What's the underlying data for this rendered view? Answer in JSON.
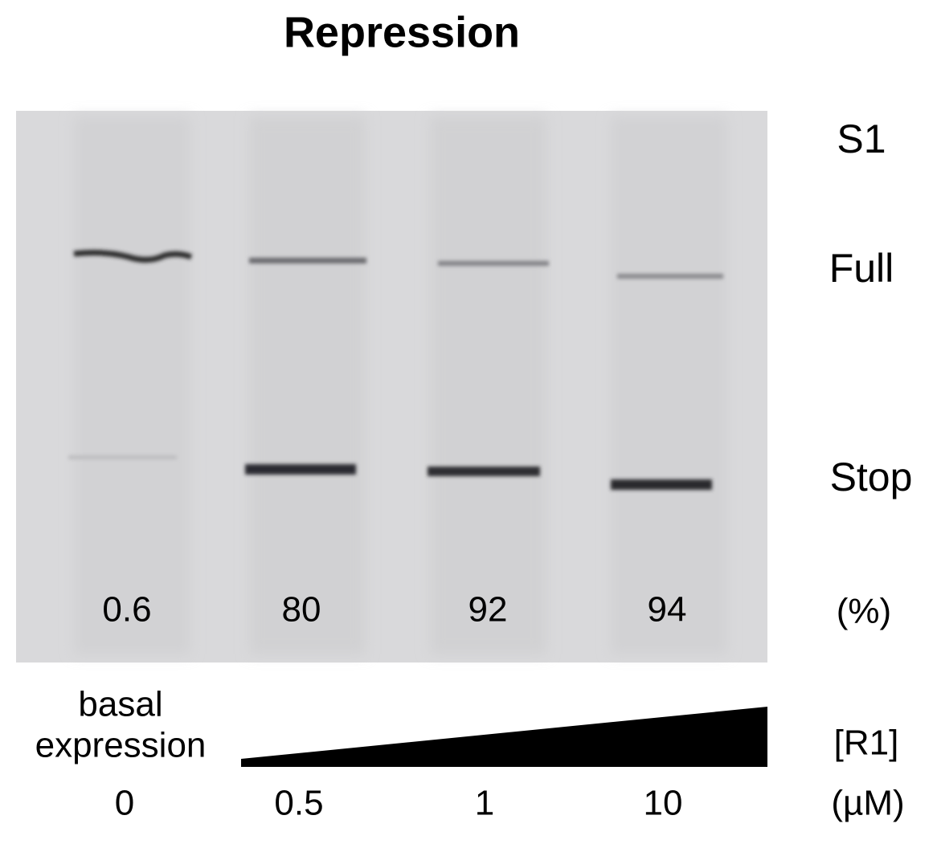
{
  "title": "Repression",
  "band_labels": [
    "S1",
    "Full",
    "Stop"
  ],
  "percent_unit": "(%)",
  "lanes": [
    {
      "percent": 0.6,
      "concentration": 0
    },
    {
      "percent": 80,
      "concentration": 0.5
    },
    {
      "percent": 92,
      "concentration": 1
    },
    {
      "percent": 94,
      "concentration": 10
    }
  ],
  "basal_label": [
    "basal",
    "expression"
  ],
  "reagent_label": "[R1]",
  "concentration_unit": "(µM)"
}
